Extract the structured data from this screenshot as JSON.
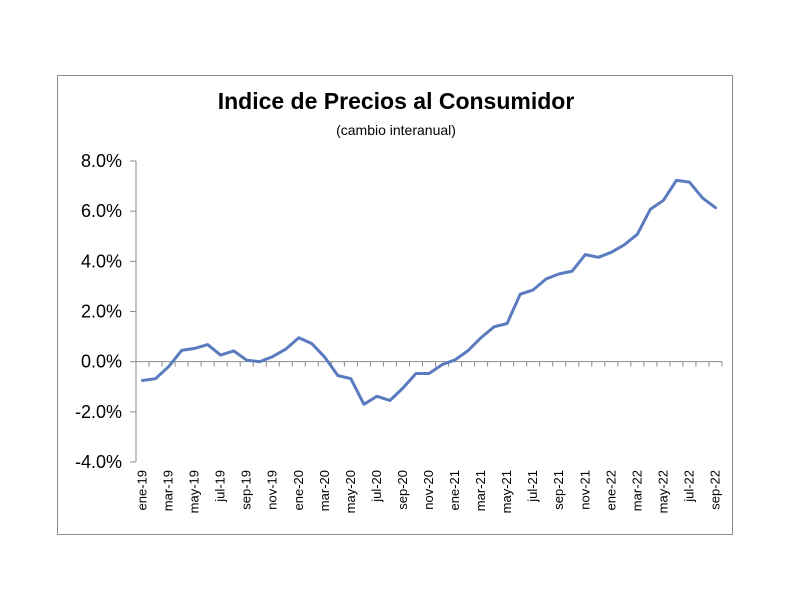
{
  "chart_data": {
    "type": "line",
    "title": "Indice de Precios al Consumidor",
    "subtitle": "(cambio interanual)",
    "xlabel": "",
    "ylabel": "",
    "ylim": [
      -4.0,
      8.0
    ],
    "yticks": [
      "-4.0%",
      "-2.0%",
      "0.0%",
      "2.0%",
      "4.0%",
      "6.0%",
      "8.0%"
    ],
    "ytick_values": [
      -4,
      -2,
      0,
      2,
      4,
      6,
      8
    ],
    "grid": false,
    "legend": "none",
    "line_color": "#5b7bbf",
    "x": [
      "ene-19",
      "feb-19",
      "mar-19",
      "abr-19",
      "may-19",
      "jun-19",
      "jul-19",
      "ago-19",
      "sep-19",
      "oct-19",
      "nov-19",
      "dic-19",
      "ene-20",
      "feb-20",
      "mar-20",
      "abr-20",
      "may-20",
      "jun-20",
      "jul-20",
      "ago-20",
      "sep-20",
      "oct-20",
      "nov-20",
      "dic-20",
      "ene-21",
      "feb-21",
      "mar-21",
      "abr-21",
      "may-21",
      "jun-21",
      "jul-21",
      "ago-21",
      "sep-21",
      "oct-21",
      "nov-21",
      "dic-21",
      "ene-22",
      "feb-22",
      "mar-22",
      "abr-22",
      "may-22",
      "jun-22",
      "jul-22",
      "ago-22",
      "sep-22"
    ],
    "xtick_labels": [
      "ene-19",
      "mar-19",
      "may-19",
      "jul-19",
      "sep-19",
      "nov-19",
      "ene-20",
      "mar-20",
      "may-20",
      "jul-20",
      "sep-20",
      "nov-20",
      "ene-21",
      "mar-21",
      "may-21",
      "jul-21",
      "sep-21",
      "nov-21",
      "ene-22",
      "mar-22",
      "may-22",
      "jul-22",
      "sep-22"
    ],
    "series": [
      {
        "values": [
          -0.75,
          -0.68,
          -0.2,
          0.45,
          0.53,
          0.68,
          0.26,
          0.43,
          0.06,
          0.0,
          0.2,
          0.5,
          0.95,
          0.72,
          0.18,
          -0.55,
          -0.68,
          -1.7,
          -1.38,
          -1.55,
          -1.05,
          -0.47,
          -0.47,
          -0.12,
          0.07,
          0.44,
          0.96,
          1.39,
          1.52,
          2.69,
          2.86,
          3.3,
          3.5,
          3.61,
          4.27,
          4.16,
          4.36,
          4.66,
          5.08,
          6.08,
          6.43,
          7.23,
          7.16,
          6.53,
          6.14
        ]
      }
    ]
  }
}
